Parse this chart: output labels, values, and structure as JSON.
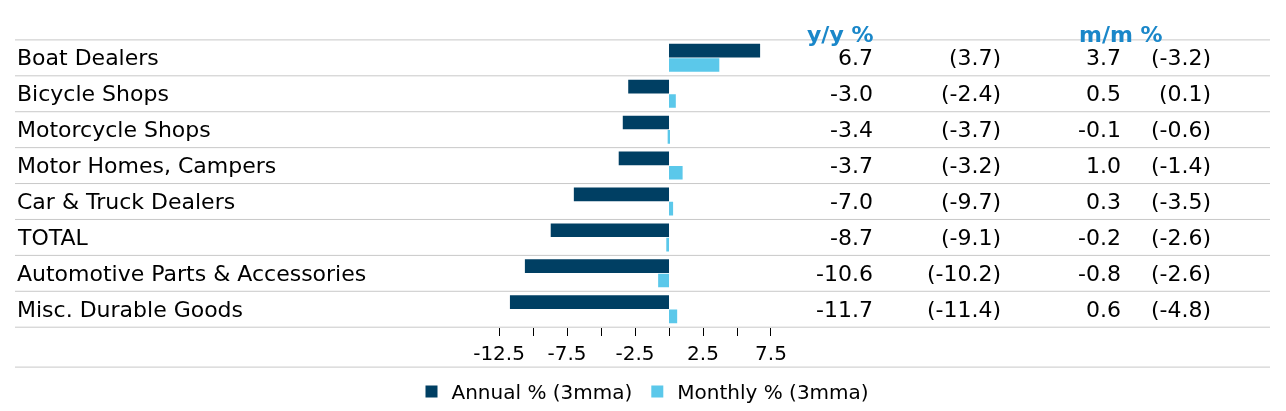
{
  "chart_data": {
    "type": "bar",
    "orientation": "horizontal",
    "categories": [
      "Boat Dealers",
      "Bicycle Shops",
      "Motorcycle Shops",
      "Motor Homes, Campers",
      "Car & Truck Dealers",
      "TOTAL",
      "Automotive Parts & Accessories",
      "Misc. Durable Goods"
    ],
    "series": [
      {
        "name": "Annual % (3mma)",
        "color": "#003f63",
        "values": [
          6.7,
          -3.0,
          -3.4,
          -3.7,
          -7.0,
          -8.7,
          -10.6,
          -11.7
        ],
        "value_labels": [
          "6.7",
          "-3.0",
          "-3.4",
          "-3.7",
          "-7.0",
          "-8.7",
          "-10.6",
          "-11.7"
        ]
      },
      {
        "name": "Monthly % (3mma)",
        "color": "#5bc8ea",
        "values": [
          3.7,
          0.5,
          -0.1,
          1.0,
          0.3,
          -0.2,
          -0.8,
          0.6
        ],
        "value_labels": [
          "3.7",
          "0.5",
          "-0.1",
          "1.0",
          "0.3",
          "-0.2",
          "-0.8",
          "0.6"
        ]
      }
    ],
    "xlim": [
      -48.1,
      44.2
    ],
    "xticks": [
      -12.5,
      {
        "value": -10,
        "label": null
      },
      -7.5,
      {
        "value": -5,
        "label": null
      },
      -2.5,
      {
        "value": 0,
        "label": null
      },
      2.5,
      {
        "value": 5,
        "label": null
      },
      7.5
    ],
    "annotations": [
      "y/y %",
      "m/m %",
      "(3.7)",
      "(-2.4)",
      "(-3.7)",
      "(-3.2)",
      "(-9.7)",
      "(-9.1)",
      "(-10.2)",
      "(-11.4)",
      "(-3.2)",
      "(0.1)",
      "(-0.6)",
      "(-1.4)",
      "(-3.5)",
      "(-2.6)",
      "(-2.6)",
      "(-4.8)"
    ],
    "legend": "bottom"
  }
}
